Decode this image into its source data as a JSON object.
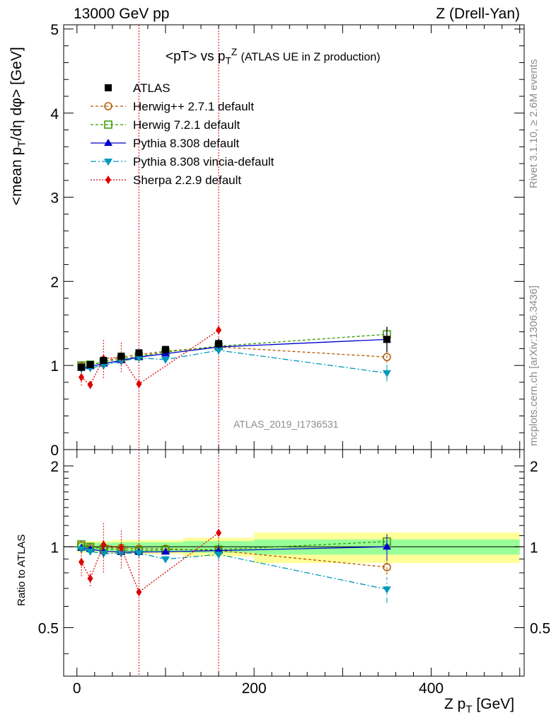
{
  "header": {
    "left": "13000 GeV pp",
    "right": "Z (Drell-Yan)"
  },
  "side_labels": {
    "rivet": "Rivet 3.1.10, ≥ 2.6M events",
    "mcplots": "mcplots.cern.ch [arXiv:1306.3436]"
  },
  "chart_data": {
    "type": "scatter",
    "title_main": "<pT> vs p",
    "title_sub": "T",
    "title_sup": "Z",
    "title_rest": "(ATLAS UE in Z production)",
    "analysis_ref": "ATLAS_2019_I1736531",
    "xlabel_main": "Z p",
    "xlabel_sub": "T",
    "xlabel_unit": "[GeV]",
    "ylabel_parts": [
      "<mean p",
      "T",
      "/dη dφ> [GeV]"
    ],
    "ratio_ylabel": "Ratio to ATLAS",
    "xlim": [
      -15,
      505
    ],
    "ylim": [
      0,
      5.05
    ],
    "ratio_ylim": [
      0.33,
      2.3
    ],
    "x_ticks": [
      0,
      200,
      400
    ],
    "y_ticks": [
      1,
      2,
      3,
      4,
      5
    ],
    "y_tick_labels": [
      "1",
      "2",
      "3",
      "4",
      "5"
    ],
    "zero_label": "0",
    "ratio_ticks": [
      0.5,
      1,
      2
    ],
    "ratio_tick_labels": [
      "0.5",
      "1",
      "2"
    ],
    "vlines": [
      70,
      160
    ],
    "x": [
      5,
      15,
      30,
      50,
      70,
      100,
      160,
      350
    ],
    "reference": {
      "name": "ATLAS",
      "color": "#000000",
      "values": [
        0.98,
        1.01,
        1.06,
        1.11,
        1.15,
        1.19,
        1.26,
        1.31
      ],
      "yerr": [
        0.03,
        0.03,
        0.03,
        0.03,
        0.04,
        0.04,
        0.06,
        0.15
      ]
    },
    "ratio_bands": [
      {
        "x0": 0,
        "x1": 10,
        "inner": 0.035,
        "outer": 0.05
      },
      {
        "x0": 10,
        "x1": 20,
        "inner": 0.035,
        "outer": 0.05
      },
      {
        "x0": 20,
        "x1": 40,
        "inner": 0.035,
        "outer": 0.05
      },
      {
        "x0": 40,
        "x1": 60,
        "inner": 0.04,
        "outer": 0.06
      },
      {
        "x0": 60,
        "x1": 80,
        "inner": 0.04,
        "outer": 0.06
      },
      {
        "x0": 80,
        "x1": 120,
        "inner": 0.04,
        "outer": 0.06
      },
      {
        "x0": 120,
        "x1": 200,
        "inner": 0.05,
        "outer": 0.08
      },
      {
        "x0": 200,
        "x1": 500,
        "inner": 0.065,
        "outer": 0.13
      }
    ],
    "series": [
      {
        "name": "Herwig++ 2.7.1 default",
        "color": "#b35900",
        "dash": "4,3",
        "marker": "circle-open",
        "values": [
          0.99,
          1.0,
          1.05,
          1.1,
          1.13,
          1.17,
          1.22,
          1.1
        ],
        "yerr": [
          0.02,
          0.02,
          0.02,
          0.02,
          0.03,
          0.03,
          0.06,
          0.07
        ]
      },
      {
        "name": "Herwig 7.2.1 default",
        "color": "#339900",
        "dash": "4,3",
        "marker": "square-open",
        "values": [
          1.0,
          1.01,
          1.04,
          1.08,
          1.11,
          1.16,
          1.23,
          1.37
        ],
        "yerr": [
          0.02,
          0.02,
          0.02,
          0.02,
          0.03,
          0.03,
          0.06,
          0.08
        ]
      },
      {
        "name": "Pythia 8.308 default",
        "color": "#0000cc",
        "dash": "",
        "marker": "triangle-up",
        "values": [
          0.97,
          0.99,
          1.02,
          1.06,
          1.1,
          1.14,
          1.22,
          1.31
        ],
        "yerr": [
          0.02,
          0.02,
          0.02,
          0.02,
          0.03,
          0.03,
          0.06,
          0.15
        ]
      },
      {
        "name": "Pythia 8.308 vincia-default",
        "color": "#0099bb",
        "dash": "8,3,2,3",
        "marker": "triangle-down",
        "values": [
          0.96,
          0.97,
          1.0,
          1.05,
          1.09,
          1.07,
          1.18,
          0.91
        ],
        "yerr": [
          0.02,
          0.02,
          0.02,
          0.02,
          0.03,
          0.03,
          0.06,
          0.1
        ]
      },
      {
        "name": "Sherpa 2.2.9 default",
        "color": "#dd0000",
        "dash": "2,2",
        "marker": "diamond",
        "values": [
          0.86,
          0.77,
          1.08,
          1.1,
          0.78,
          null,
          1.42,
          null
        ],
        "yerr": [
          0.1,
          0.05,
          0.23,
          0.18,
          0.0,
          null,
          0.0,
          null
        ]
      }
    ]
  }
}
